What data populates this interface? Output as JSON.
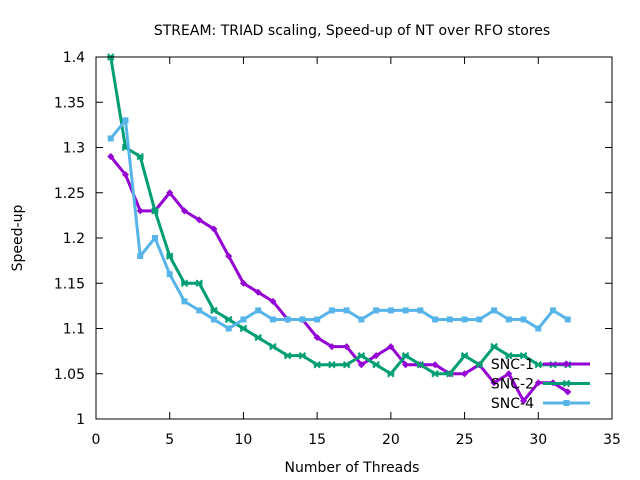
{
  "chart_data": {
    "type": "line",
    "title": "STREAM: TRIAD scaling, Speed-up of NT over RFO stores",
    "xlabel": "Number of Threads",
    "ylabel": "Speed-up",
    "xlim": [
      0,
      35
    ],
    "ylim": [
      1,
      1.4
    ],
    "xticks": [
      0,
      5,
      10,
      15,
      20,
      25,
      30,
      35
    ],
    "yticks": [
      1,
      1.05,
      1.1,
      1.15,
      1.2,
      1.25,
      1.3,
      1.35,
      1.4
    ],
    "grid": false,
    "legend_position": "bottom-right",
    "x": [
      1,
      2,
      3,
      4,
      5,
      6,
      7,
      8,
      9,
      10,
      11,
      12,
      13,
      14,
      15,
      16,
      17,
      18,
      19,
      20,
      21,
      22,
      23,
      24,
      25,
      26,
      27,
      28,
      29,
      30,
      31,
      32
    ],
    "series": [
      {
        "name": "SNC-1",
        "color": "#9400d3",
        "values": [
          1.29,
          1.27,
          1.23,
          1.23,
          1.25,
          1.23,
          1.22,
          1.21,
          1.18,
          1.15,
          1.14,
          1.13,
          1.11,
          1.11,
          1.09,
          1.08,
          1.08,
          1.06,
          1.07,
          1.08,
          1.06,
          1.06,
          1.06,
          1.05,
          1.05,
          1.06,
          1.04,
          1.05,
          1.02,
          1.04,
          1.04,
          1.03
        ]
      },
      {
        "name": "SNC-2",
        "color": "#009e73",
        "values": [
          1.4,
          1.3,
          1.29,
          1.23,
          1.18,
          1.15,
          1.15,
          1.12,
          1.11,
          1.1,
          1.09,
          1.08,
          1.07,
          1.07,
          1.06,
          1.06,
          1.06,
          1.07,
          1.06,
          1.05,
          1.07,
          1.06,
          1.05,
          1.05,
          1.07,
          1.06,
          1.08,
          1.07,
          1.07,
          1.06,
          1.06,
          1.06
        ]
      },
      {
        "name": "SNC-4",
        "color": "#56b4e9",
        "values": [
          1.31,
          1.33,
          1.18,
          1.2,
          1.16,
          1.13,
          1.12,
          1.11,
          1.1,
          1.11,
          1.12,
          1.11,
          1.11,
          1.11,
          1.11,
          1.12,
          1.12,
          1.11,
          1.12,
          1.12,
          1.12,
          1.12,
          1.11,
          1.11,
          1.11,
          1.11,
          1.12,
          1.11,
          1.11,
          1.1,
          1.12,
          1.11
        ]
      }
    ]
  }
}
